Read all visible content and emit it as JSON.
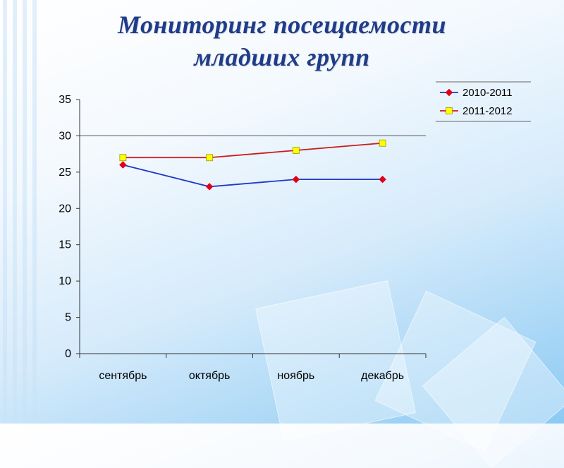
{
  "title": {
    "line1": "Мониторинг посещаемости",
    "line2": "младших групп"
  },
  "colors": {
    "title": "#1f3c8a",
    "series_2010": "#1f38c8",
    "series_2010_marker": "#e0001a",
    "series_2011": "#cc1a1a",
    "series_2011_marker": "#ffff00"
  },
  "chart_data": {
    "type": "line",
    "categories": [
      "сентябрь",
      "октябрь",
      "ноябрь",
      "декабрь"
    ],
    "series": [
      {
        "name": "2010-2011",
        "values": [
          26,
          23,
          24,
          24
        ],
        "line_color": "#1f38c8",
        "marker": "diamond",
        "marker_color": "#e0001a"
      },
      {
        "name": "2011-2012",
        "values": [
          27,
          27,
          28,
          29
        ],
        "line_color": "#cc1a1a",
        "marker": "square",
        "marker_color": "#ffff00"
      }
    ],
    "ylim": [
      0,
      35
    ],
    "yticks": [
      0,
      5,
      10,
      15,
      20,
      25,
      30,
      35
    ],
    "grid": "horizontal line at 30",
    "legend_position": "top-right"
  }
}
